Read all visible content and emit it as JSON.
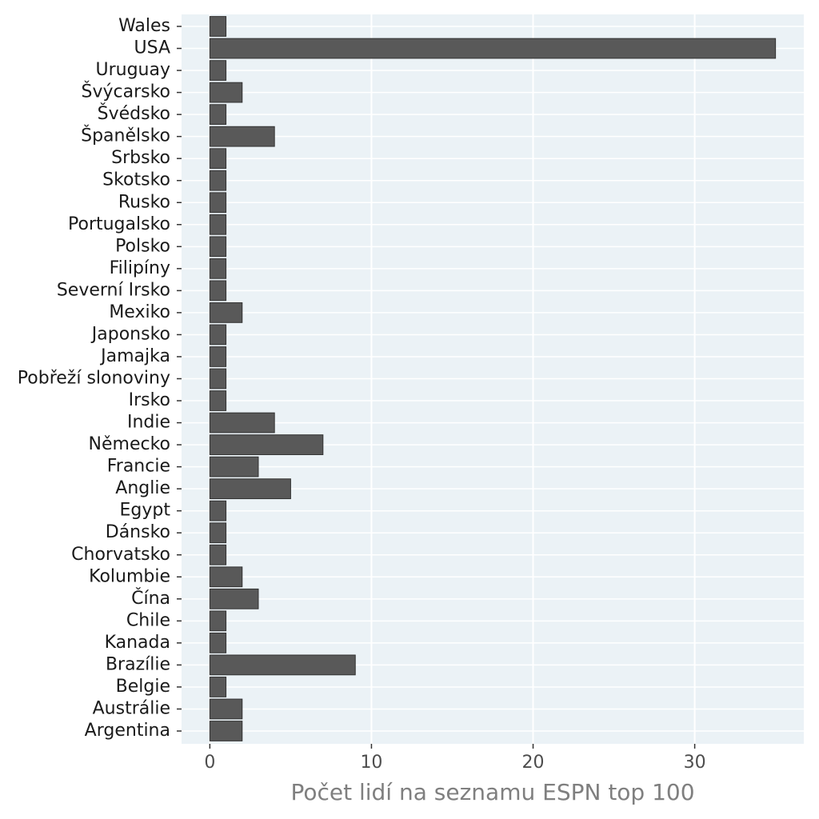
{
  "chart_data": {
    "type": "bar",
    "orientation": "horizontal",
    "x_label": "Počet lidí na seznamu ESPN top 100",
    "categories": [
      "Wales",
      "USA",
      "Uruguay",
      "Švýcarsko",
      "Švédsko",
      "Španělsko",
      "Srbsko",
      "Skotsko",
      "Rusko",
      "Portugalsko",
      "Polsko",
      "Filipíny",
      "Severní Irsko",
      "Mexiko",
      "Japonsko",
      "Jamajka",
      "Pobřeží slonoviny",
      "Irsko",
      "Indie",
      "Německo",
      "Francie",
      "Anglie",
      "Egypt",
      "Dánsko",
      "Chorvatsko",
      "Kolumbie",
      "Čína",
      "Chile",
      "Kanada",
      "Brazílie",
      "Belgie",
      "Austrálie",
      "Argentina"
    ],
    "values": [
      1,
      35,
      1,
      2,
      1,
      4,
      1,
      1,
      1,
      1,
      1,
      1,
      1,
      2,
      1,
      1,
      1,
      1,
      4,
      7,
      3,
      5,
      1,
      1,
      1,
      2,
      3,
      1,
      1,
      9,
      1,
      2,
      2
    ],
    "color": "#595959",
    "xlim": [
      -1.75,
      36.75
    ],
    "xticks": [
      0,
      10,
      20,
      30
    ],
    "grid": true
  }
}
